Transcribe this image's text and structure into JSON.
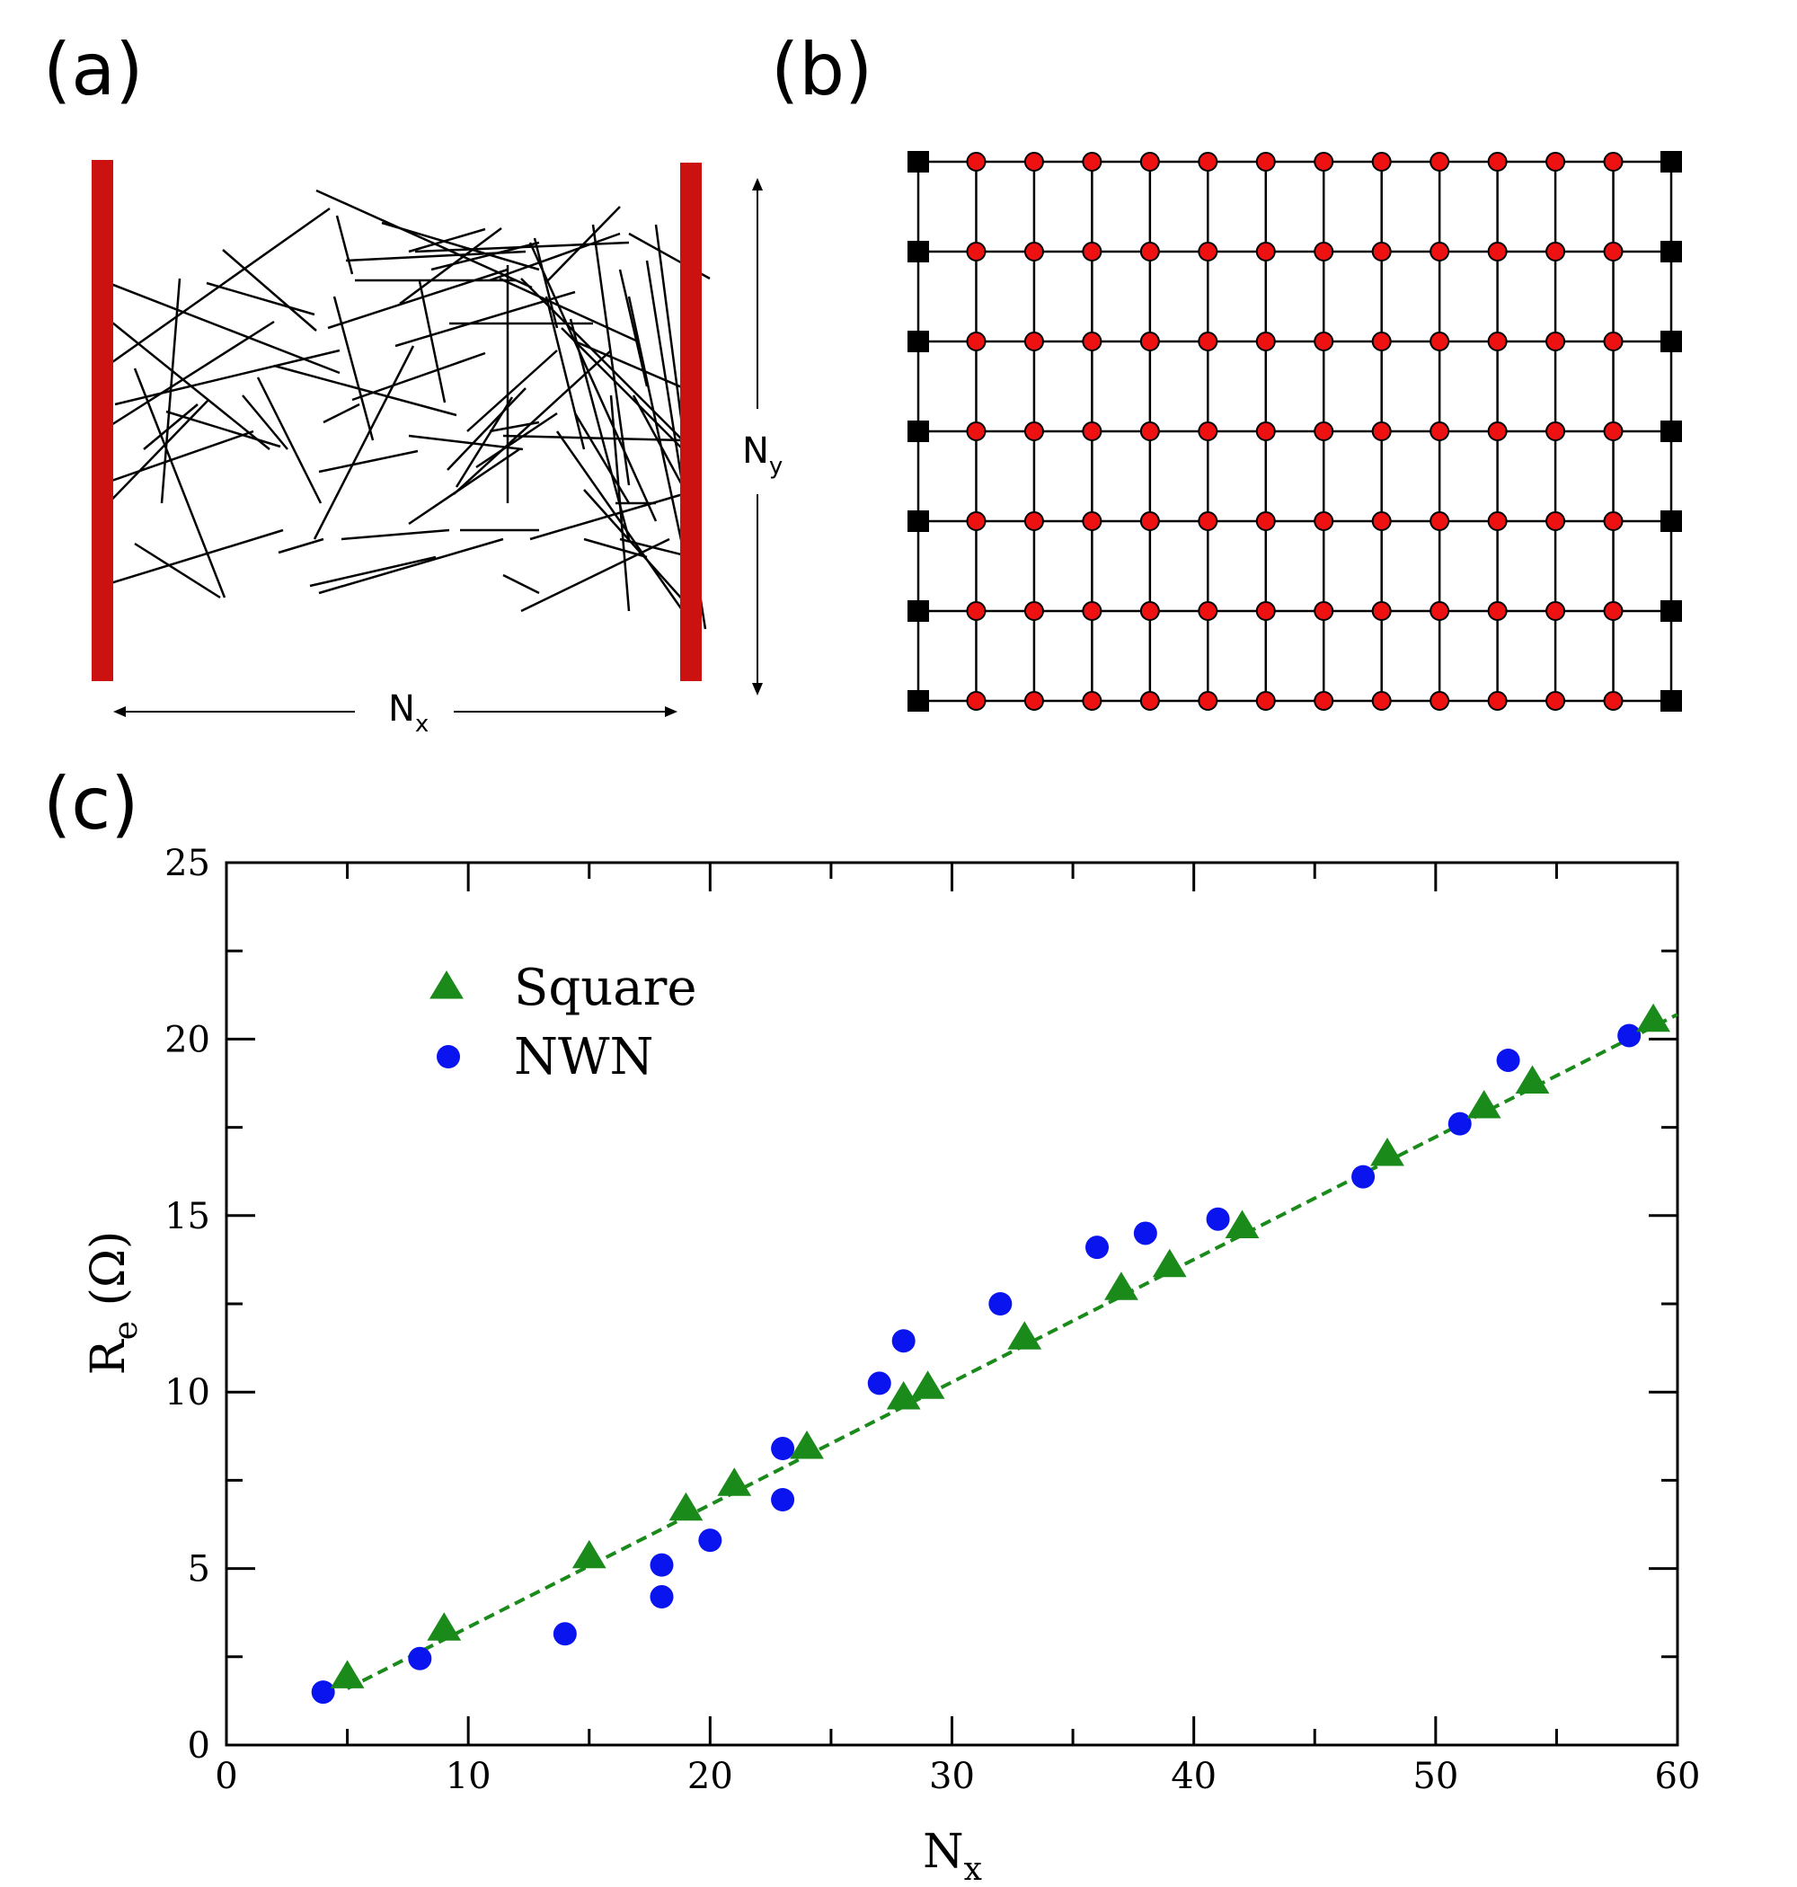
{
  "panels": {
    "a": {
      "label": "(a)",
      "nx_label": "N",
      "nx_sub": "x",
      "ny_label": "N",
      "ny_sub": "y",
      "electrode_color": "#cc1111"
    },
    "b": {
      "label": "(b)",
      "rows": 7,
      "columns": 14,
      "node_color": "#ee1111",
      "terminal_color": "#000000"
    },
    "c": {
      "label": "(c)"
    }
  },
  "chart_data": {
    "type": "scatter",
    "xlabel": "N",
    "xlabel_sub": "x",
    "ylabel": "R",
    "ylabel_sub": "e",
    "ylabel_unit": " (Ω)",
    "xlim": [
      0,
      60
    ],
    "ylim": [
      0,
      25
    ],
    "xticks": [
      0,
      10,
      20,
      30,
      40,
      50,
      60
    ],
    "yticks": [
      0,
      5,
      10,
      15,
      20,
      25
    ],
    "legend_position": "top-left",
    "series": [
      {
        "name": "Square",
        "marker": "triangle",
        "color": "#1a8a1a",
        "points": [
          [
            5,
            1.85
          ],
          [
            9,
            3.2
          ],
          [
            15,
            5.25
          ],
          [
            19,
            6.6
          ],
          [
            21,
            7.3
          ],
          [
            24,
            8.35
          ],
          [
            28,
            9.75
          ],
          [
            29,
            10.05
          ],
          [
            33,
            11.45
          ],
          [
            37,
            12.85
          ],
          [
            39,
            13.5
          ],
          [
            42,
            14.6
          ],
          [
            48,
            16.65
          ],
          [
            52,
            18.0
          ],
          [
            54,
            18.7
          ],
          [
            59,
            20.45
          ]
        ]
      },
      {
        "name": "NWN",
        "marker": "circle",
        "color": "#0a14ee",
        "points": [
          [
            4,
            1.5
          ],
          [
            8,
            2.45
          ],
          [
            14,
            3.15
          ],
          [
            18,
            4.2
          ],
          [
            18,
            5.1
          ],
          [
            20,
            5.8
          ],
          [
            23,
            6.95
          ],
          [
            23,
            8.4
          ],
          [
            27,
            10.25
          ],
          [
            28,
            11.45
          ],
          [
            32,
            12.5
          ],
          [
            36,
            14.1
          ],
          [
            38,
            14.5
          ],
          [
            41,
            14.9
          ],
          [
            47,
            16.1
          ],
          [
            51,
            17.6
          ],
          [
            53,
            19.4
          ],
          [
            58,
            20.1
          ]
        ]
      }
    ],
    "fit_line": {
      "color": "#1a8a1a",
      "style": "dashed",
      "x": [
        5,
        60
      ],
      "y": [
        1.6,
        20.7
      ]
    }
  }
}
